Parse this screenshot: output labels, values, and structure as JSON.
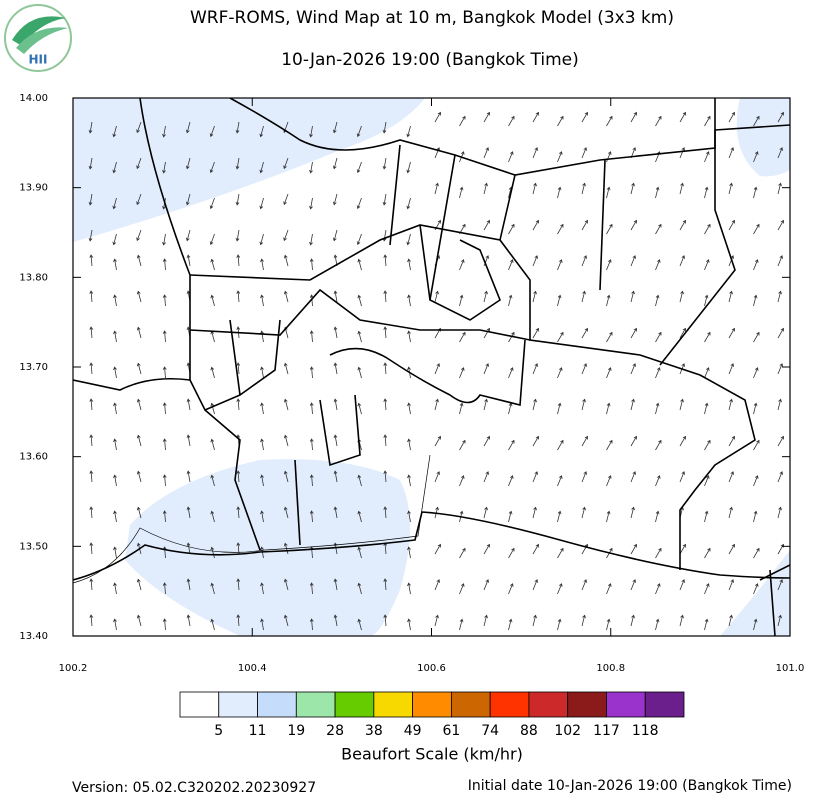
{
  "map": {
    "title": "WRF-ROMS, Wind Map at 10 m, Bangkok Model (3x3 km)",
    "subtitle": "10-Jan-2026 19:00 (Bangkok Time)",
    "logo": "HII",
    "xlim": [
      100.2,
      101.0
    ],
    "ylim": [
      13.4,
      14.0
    ],
    "xticks": [
      100.2,
      100.4,
      100.6,
      100.8,
      {
        "value": 101,
        "label": "101.0"
      }
    ],
    "yticks": [
      {
        "value": 14,
        "label": "14.00"
      },
      {
        "value": 13.9,
        "label": "13.90"
      },
      {
        "value": 13.8,
        "label": "13.80"
      },
      {
        "value": 13.7,
        "label": "13.70"
      },
      {
        "value": 13.6,
        "label": "13.60"
      },
      {
        "value": 13.5,
        "label": "13.50"
      },
      {
        "value": 13.4,
        "label": "13.40"
      }
    ],
    "colorbar": {
      "title": "Beaufort Scale (km/hr)",
      "colors": [
        "#ffffff",
        "#e1edfc",
        "#c5ddfa",
        "#9ce6aa",
        "#66cc00",
        "#f7d900",
        "#ff8c00",
        "#cc6600",
        "#ff3300",
        "#cc2a2a",
        "#8b1a1a",
        "#9933cc",
        "#6a1f8c"
      ],
      "levels": [
        5,
        11,
        19,
        28,
        38,
        49,
        61,
        74,
        88,
        102,
        117,
        118
      ]
    },
    "version": "Version: 05.02.C320202.20230927",
    "initial": "Initial date 10-Jan-2026 19:00 (Bangkok Time)"
  }
}
